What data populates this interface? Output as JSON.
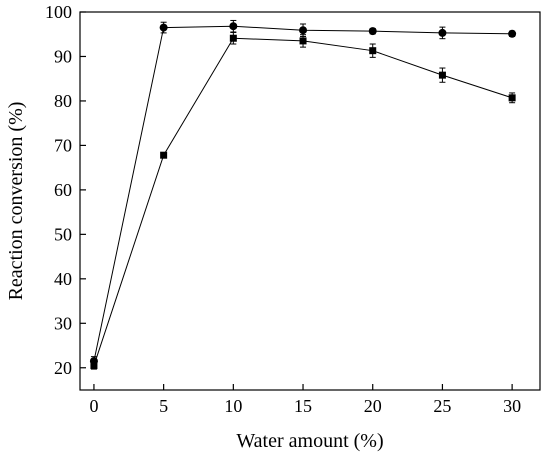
{
  "chart_data": {
    "type": "line",
    "title": "",
    "xlabel": "Water amount (%)",
    "ylabel": "Reaction conversion (%)",
    "xlim": [
      -1,
      32
    ],
    "ylim": [
      15,
      100
    ],
    "xticks": [
      0,
      5,
      10,
      15,
      20,
      25,
      30
    ],
    "yticks": [
      20,
      30,
      40,
      50,
      60,
      70,
      80,
      90,
      100
    ],
    "grid": false,
    "legend": "none",
    "x": [
      0,
      5,
      10,
      15,
      20,
      25,
      30
    ],
    "series": [
      {
        "marker": "circle",
        "color": "#000000",
        "values": [
          21.5,
          96.5,
          96.8,
          95.9,
          95.7,
          95.3,
          95.1
        ],
        "errors": [
          1.0,
          1.2,
          1.3,
          1.4,
          0.6,
          1.3,
          0.6
        ]
      },
      {
        "marker": "square",
        "color": "#000000",
        "values": [
          20.5,
          67.8,
          94.1,
          93.5,
          91.3,
          85.8,
          80.7
        ],
        "errors": [
          0.8,
          0.5,
          1.3,
          1.4,
          1.5,
          1.6,
          1.1
        ]
      }
    ]
  }
}
